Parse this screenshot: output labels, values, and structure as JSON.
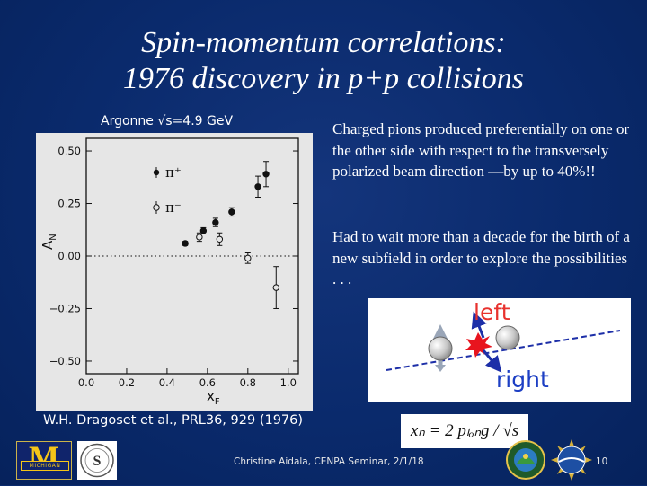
{
  "title": {
    "line1": "Spin-momentum correlations:",
    "line2": "1976 discovery in p+p collisions"
  },
  "plot": {
    "subtitle": "Argonne √s=4.9 GeV",
    "y_tick_labels": [
      "0.50",
      "0.25",
      "0.00",
      "−0.25",
      "−0.50"
    ],
    "x_tick_labels": [
      "0.0",
      "0.2",
      "0.4",
      "0.6",
      "0.8",
      "1.0"
    ],
    "ylabel_main": "A",
    "ylabel_sub": "N",
    "xlabel_main": "x",
    "xlabel_sub": "F",
    "legend_pi_plus": "π⁺",
    "legend_pi_minus": "π⁻",
    "citation": "W.H. Dragoset et al., PRL36, 929 (1976)"
  },
  "chart_data": {
    "type": "scatter",
    "title": "",
    "xlabel": "xF",
    "ylabel": "AN",
    "xlim": [
      0.0,
      1.05
    ],
    "ylim": [
      -0.56,
      0.56
    ],
    "x_ticks": [
      0.0,
      0.2,
      0.4,
      0.6,
      0.8,
      1.0
    ],
    "y_ticks": [
      -0.5,
      -0.25,
      0.0,
      0.25,
      0.5
    ],
    "reference_line_y": 0.0,
    "series": [
      {
        "name": "π⁺",
        "marker": "filled",
        "points": [
          {
            "x": 0.49,
            "y": 0.06,
            "err": 0.01
          },
          {
            "x": 0.58,
            "y": 0.12,
            "err": 0.015
          },
          {
            "x": 0.64,
            "y": 0.16,
            "err": 0.02
          },
          {
            "x": 0.72,
            "y": 0.21,
            "err": 0.02
          },
          {
            "x": 0.85,
            "y": 0.33,
            "err": 0.05
          },
          {
            "x": 0.89,
            "y": 0.39,
            "err": 0.06
          }
        ]
      },
      {
        "name": "π⁻",
        "marker": "open",
        "points": [
          {
            "x": 0.56,
            "y": 0.09,
            "err": 0.02
          },
          {
            "x": 0.66,
            "y": 0.08,
            "err": 0.03
          },
          {
            "x": 0.8,
            "y": -0.01,
            "err": 0.025
          },
          {
            "x": 0.94,
            "y": -0.15,
            "err": 0.1
          }
        ]
      }
    ]
  },
  "text": {
    "para1": "Charged pions produced preferentially on one or the other side with respect to the transversely polarized beam direction —by up to 40%!!",
    "para2": "Had to wait more than a decade for the birth of a new subfield in order to explore the possibilities . . ."
  },
  "diagram": {
    "label_left": "left",
    "label_right": "right"
  },
  "formula": "xₙ = 2 pₗₒₙg / √s",
  "logos": {
    "michigan_letter": "M",
    "michigan_band": "MICHIGAN",
    "seal_letter": "S"
  },
  "footer": {
    "text": "Christine Aidala, CENPA Seminar, 2/1/18",
    "page_number": "10"
  },
  "colors": {
    "background": "#0b2b6e",
    "left_label": "#e8322e",
    "right_label": "#1d3fc4",
    "michigan_blue": "#10246b",
    "michigan_maize": "#f5c518"
  }
}
